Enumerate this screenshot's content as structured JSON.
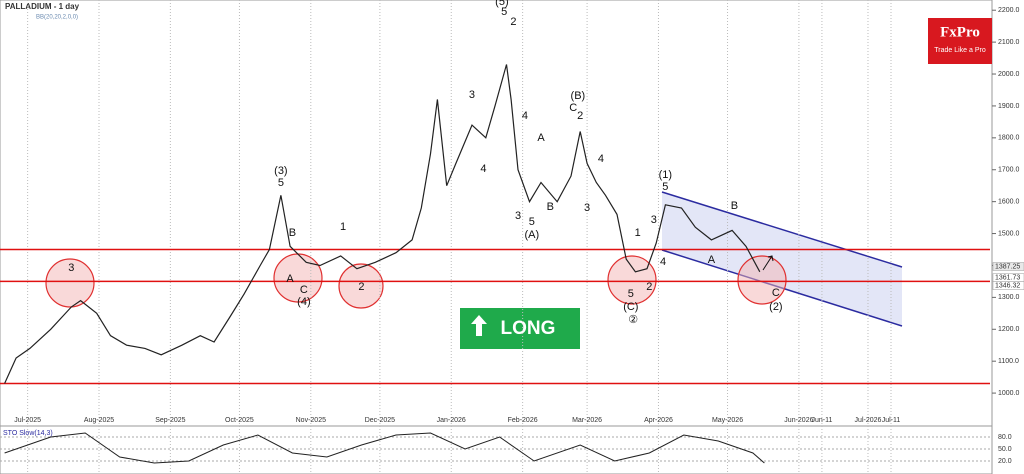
{
  "chart_data": {
    "type": "line",
    "title": "PALLADIUM - 1 day",
    "subtitle": "BB(20,20,2,0,0)",
    "x": [
      -10,
      -5,
      1,
      10,
      19,
      23,
      30,
      36,
      43,
      51,
      58,
      67,
      75,
      81,
      88,
      94,
      101,
      105,
      110,
      114,
      121,
      127,
      136,
      143,
      151,
      160,
      167,
      171,
      175,
      178,
      182,
      186,
      193,
      199,
      203,
      208,
      210,
      213,
      218,
      223,
      230,
      236,
      240,
      243,
      247,
      251,
      256,
      260,
      264,
      269,
      273,
      277,
      284,
      290,
      297,
      306,
      312,
      318
    ],
    "values": [
      1030,
      1110,
      1140,
      1200,
      1270,
      1290,
      1250,
      1180,
      1150,
      1140,
      1120,
      1150,
      1180,
      1160,
      1240,
      1310,
      1400,
      1450,
      1620,
      1460,
      1410,
      1400,
      1430,
      1390,
      1410,
      1440,
      1480,
      1580,
      1750,
      1920,
      1650,
      1720,
      1840,
      1800,
      1900,
      2030,
      1920,
      1700,
      1600,
      1660,
      1600,
      1680,
      1820,
      1720,
      1660,
      1620,
      1560,
      1420,
      1380,
      1390,
      1470,
      1590,
      1580,
      1520,
      1480,
      1510,
      1460,
      1380
    ],
    "color": "#222222",
    "xlim": [
      -12,
      418
    ],
    "ylim": [
      900,
      2232
    ],
    "xticks": [
      {
        "value": 0,
        "label": "Jul-2025"
      },
      {
        "value": 31,
        "label": "Aug-2025"
      },
      {
        "value": 62,
        "label": "Sep-2025"
      },
      {
        "value": 92,
        "label": "Oct-2025"
      },
      {
        "value": 123,
        "label": "Nov-2025"
      },
      {
        "value": 153,
        "label": "Dec-2025"
      },
      {
        "value": 184,
        "label": "Jan-2026"
      },
      {
        "value": 215,
        "label": "Feb-2026"
      },
      {
        "value": 243,
        "label": "Mar-2026"
      },
      {
        "value": 274,
        "label": "Apr-2026"
      },
      {
        "value": 304,
        "label": "May-2026"
      },
      {
        "value": 335,
        "label": "Jun-2026"
      },
      {
        "value": 345,
        "label": "Jun-11"
      },
      {
        "value": 365,
        "label": "Jul-2026"
      },
      {
        "value": 375,
        "label": "Jul-11"
      }
    ],
    "yticks": [
      {
        "value": 1000,
        "label": "1000.0"
      },
      {
        "value": 1100,
        "label": "1100.0"
      },
      {
        "value": 1200,
        "label": "1200.0"
      },
      {
        "value": 1300,
        "label": "1300.0"
      },
      {
        "value": 1400,
        "label": "1400.0"
      },
      {
        "value": 1500,
        "label": "1500.0"
      },
      {
        "value": 1600,
        "label": "1600.0"
      },
      {
        "value": 1700,
        "label": "1700.0"
      },
      {
        "value": 1800,
        "label": "1800.0"
      },
      {
        "value": 1900,
        "label": "1900.0"
      },
      {
        "value": 2000,
        "label": "2000.0"
      },
      {
        "value": 2100,
        "label": "2100.0"
      },
      {
        "value": 2200,
        "label": "2200.0"
      }
    ],
    "price_labels": [
      1387.25,
      1361.73,
      1346.32
    ],
    "hlines": [
      1450,
      1350,
      1030
    ],
    "annotations": [
      {
        "text": "3",
        "x": 19,
        "y": 1392
      },
      {
        "text": "(3)",
        "x": 110,
        "y": 1696
      },
      {
        "text": "5",
        "x": 110,
        "y": 1658
      },
      {
        "text": "B",
        "x": 115,
        "y": 1502
      },
      {
        "text": "A",
        "x": 114,
        "y": 1357
      },
      {
        "text": "C",
        "x": 120,
        "y": 1323
      },
      {
        "text": "(4)",
        "x": 120,
        "y": 1285
      },
      {
        "text": "1",
        "x": 137,
        "y": 1520
      },
      {
        "text": "2",
        "x": 145,
        "y": 1332
      },
      {
        "text": "3",
        "x": 193,
        "y": 1934
      },
      {
        "text": "4",
        "x": 198,
        "y": 1702
      },
      {
        "text": "(5)",
        "x": 206,
        "y": 2226
      },
      {
        "text": "5",
        "x": 207,
        "y": 2194
      },
      {
        "text": "2",
        "x": 211,
        "y": 2163
      },
      {
        "text": "4",
        "x": 216,
        "y": 1868
      },
      {
        "text": "A",
        "x": 223,
        "y": 1799
      },
      {
        "text": "3",
        "x": 213,
        "y": 1555
      },
      {
        "text": "5",
        "x": 219,
        "y": 1536
      },
      {
        "text": "(A)",
        "x": 219,
        "y": 1495
      },
      {
        "text": "B",
        "x": 227,
        "y": 1583
      },
      {
        "text": "(B)",
        "x": 239,
        "y": 1931
      },
      {
        "text": "C",
        "x": 237,
        "y": 1893
      },
      {
        "text": "2",
        "x": 240,
        "y": 1868
      },
      {
        "text": "4",
        "x": 249,
        "y": 1734
      },
      {
        "text": "3",
        "x": 243,
        "y": 1580
      },
      {
        "text": "1",
        "x": 265,
        "y": 1502
      },
      {
        "text": "3",
        "x": 272,
        "y": 1542
      },
      {
        "text": "4",
        "x": 276,
        "y": 1411
      },
      {
        "text": "5",
        "x": 262,
        "y": 1310
      },
      {
        "text": "2",
        "x": 270,
        "y": 1332
      },
      {
        "text": "(C)",
        "x": 262,
        "y": 1270
      },
      {
        "text": "②",
        "x": 263,
        "y": 1229
      },
      {
        "text": "(1)",
        "x": 277,
        "y": 1683
      },
      {
        "text": "5",
        "x": 277,
        "y": 1646
      },
      {
        "text": "A",
        "x": 297,
        "y": 1417
      },
      {
        "text": "B",
        "x": 307,
        "y": 1586
      },
      {
        "text": "C",
        "x": 325,
        "y": 1314
      },
      {
        "text": "(2)",
        "x": 325,
        "y": 1270
      }
    ],
    "stochastic": {
      "title": "STO Slow(14,3)",
      "x": [
        -10,
        10,
        25,
        40,
        55,
        70,
        85,
        100,
        115,
        130,
        145,
        160,
        175,
        190,
        205,
        220,
        240,
        255,
        270,
        285,
        300,
        315,
        320
      ],
      "values": [
        40,
        80,
        90,
        30,
        15,
        20,
        60,
        85,
        40,
        30,
        60,
        85,
        90,
        50,
        80,
        20,
        60,
        20,
        40,
        85,
        70,
        40,
        15
      ],
      "ylim": [
        0,
        100
      ],
      "yticks": [
        {
          "value": 80,
          "label": "80.0"
        },
        {
          "value": 50,
          "label": "50.0"
        },
        {
          "value": 20,
          "label": "20.0"
        }
      ]
    }
  },
  "logo": {
    "name": "FxPro",
    "tagline": "Trade Like a Pro"
  },
  "signal": "LONG"
}
